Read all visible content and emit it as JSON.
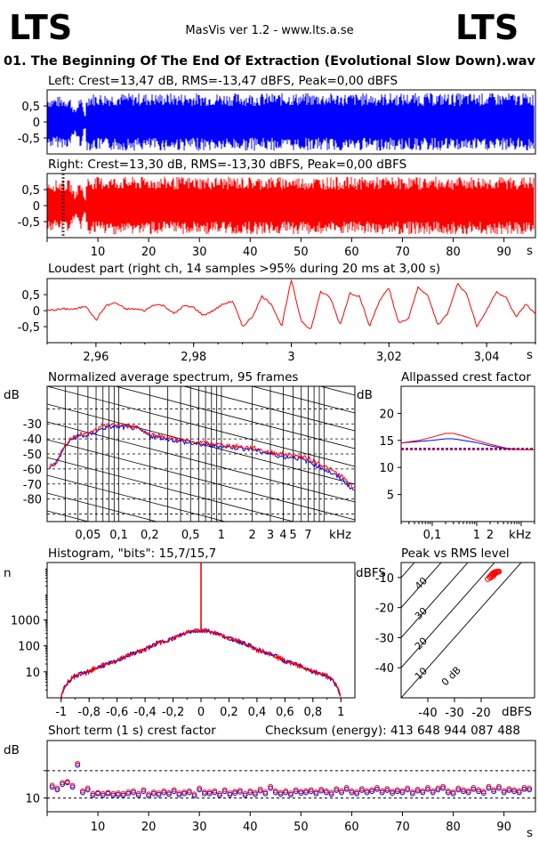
{
  "header": {
    "logo_left": "LTS",
    "logo_right": "LTS",
    "app_title": "MasVis ver 1.2 - www.lts.a.se",
    "file_title": "01. The Beginning Of The End Of Extraction (Evolutional Slow Down).wav"
  },
  "colors": {
    "left_channel": "#0000ff",
    "right_channel": "#ff0000",
    "frame": "#000000",
    "background": "#ffffff"
  },
  "chart_data": [
    {
      "id": "waveform-left",
      "type": "area",
      "title": "Left: Crest=13,47 dB, RMS=-13,47 dBFS, Peak=0,00 dBFS",
      "series": [
        {
          "name": "Left",
          "color": "#0000ff"
        }
      ],
      "x": [
        0,
        4.5,
        5.5,
        6.5,
        7.5,
        7.8,
        20,
        40,
        60,
        80,
        96.2
      ],
      "y_envelope": [
        0.8,
        0.8,
        0.35,
        0.85,
        0.2,
        0.9,
        0.9,
        0.9,
        0.9,
        0.9,
        0.9
      ],
      "ylim": [
        -1,
        1
      ],
      "yticks": [
        "0,5",
        "0",
        "-0,5"
      ],
      "xlim": [
        0,
        96.2
      ]
    },
    {
      "id": "waveform-right",
      "type": "area",
      "title": "Right: Crest=13,30 dB, RMS=-13,30 dBFS, Peak=0,00 dBFS",
      "series": [
        {
          "name": "Right",
          "color": "#ff0000"
        }
      ],
      "x": [
        0,
        4.5,
        5.5,
        6.5,
        7.5,
        7.8,
        20,
        40,
        60,
        80,
        96.2
      ],
      "y_envelope": [
        0.8,
        0.8,
        0.35,
        0.85,
        0.2,
        0.9,
        0.9,
        0.9,
        0.9,
        0.9,
        0.9
      ],
      "marker_x": [
        3.0,
        3.3
      ],
      "ylim": [
        -1,
        1
      ],
      "yticks": [
        "0,5",
        "0",
        "-0,5"
      ],
      "xlim": [
        0,
        96.2
      ],
      "xticks": [
        "10",
        "20",
        "30",
        "40",
        "50",
        "60",
        "70",
        "80",
        "90"
      ],
      "xunit": "s"
    },
    {
      "id": "loudest-part",
      "type": "line",
      "title": "Loudest part (right ch, 14 samples >95% during 20 ms at 3,00 s)",
      "series": [
        {
          "name": "Right",
          "color": "#ff0000"
        }
      ],
      "x": [
        2.95,
        2.953,
        2.956,
        2.958,
        2.96,
        2.962,
        2.964,
        2.966,
        2.968,
        2.97,
        2.972,
        2.974,
        2.976,
        2.978,
        2.98,
        2.982,
        2.984,
        2.986,
        2.988,
        2.99,
        2.992,
        2.994,
        2.996,
        2.998,
        3.0,
        3.002,
        3.004,
        3.006,
        3.008,
        3.01,
        3.012,
        3.014,
        3.016,
        3.018,
        3.02,
        3.022,
        3.024,
        3.026,
        3.028,
        3.03,
        3.032,
        3.034,
        3.036,
        3.038,
        3.04,
        3.042,
        3.044,
        3.046,
        3.048,
        3.05
      ],
      "values": [
        0.0,
        0.05,
        0.05,
        0.15,
        -0.3,
        0.15,
        0.25,
        0.05,
        0.05,
        0.0,
        0.2,
        0.15,
        -0.1,
        0.15,
        0.1,
        -0.15,
        0.0,
        0.2,
        0.3,
        -0.5,
        -0.2,
        0.45,
        0.2,
        -0.5,
        0.95,
        -0.3,
        -0.6,
        0.6,
        0.4,
        -0.45,
        0.55,
        0.45,
        -0.5,
        0.3,
        0.7,
        -0.4,
        -0.25,
        0.75,
        0.45,
        -0.45,
        -0.1,
        0.85,
        0.5,
        -0.5,
        0.0,
        0.6,
        0.4,
        -0.2,
        0.2,
        -0.1
      ],
      "ylim": [
        -1,
        1
      ],
      "yticks": [
        "0,5",
        "0",
        "-0,5"
      ],
      "xlim": [
        2.95,
        3.05
      ],
      "xticks": [
        "2,96",
        "2,98",
        "3",
        "3,02",
        "3,04"
      ],
      "xunit": "s"
    },
    {
      "id": "spectrum",
      "type": "line",
      "title": "Normalized average spectrum, 95 frames",
      "ylabel": "dB",
      "series": [
        {
          "name": "Left",
          "color": "#0000ff"
        },
        {
          "name": "Right",
          "color": "#ff0000"
        }
      ],
      "x": [
        0.02,
        0.025,
        0.03,
        0.035,
        0.04,
        0.05,
        0.06,
        0.07,
        0.08,
        0.1,
        0.15,
        0.2,
        0.3,
        0.5,
        0.7,
        1,
        2,
        3,
        4,
        5,
        7,
        10,
        15,
        20
      ],
      "values_left": [
        -60,
        -55,
        -45,
        -40,
        -38,
        -38,
        -35,
        -33,
        -32,
        -32,
        -33,
        -38,
        -40,
        -43,
        -44,
        -45,
        -47,
        -50,
        -52,
        -52,
        -55,
        -60,
        -67,
        -75
      ],
      "values_right": [
        -60,
        -55,
        -44,
        -39,
        -37,
        -37,
        -34,
        -32,
        -31,
        -31,
        -32,
        -37,
        -39,
        -42,
        -43,
        -44,
        -46,
        -49,
        -50,
        -51,
        -53,
        -58,
        -65,
        -74
      ],
      "ylim": [
        -95,
        -5
      ],
      "yticks": [
        "-30",
        "-40",
        "-50",
        "-60",
        "-70",
        "-80"
      ],
      "xscale": "log",
      "xlim": [
        0.02,
        20
      ],
      "xticks": [
        "0,05",
        "0,1",
        "0,2",
        "0,5",
        "1",
        "2",
        "3",
        "4",
        "5",
        "7"
      ],
      "xunit": "kHz"
    },
    {
      "id": "allpassed-crest",
      "type": "line",
      "title": "Allpassed crest factor",
      "ylabel": "dB",
      "series": [
        {
          "name": "Left",
          "color": "#0000ff"
        },
        {
          "name": "Right",
          "color": "#ff0000"
        }
      ],
      "x": [
        0.02,
        0.05,
        0.1,
        0.2,
        0.3,
        0.5,
        1,
        2,
        5,
        10,
        20
      ],
      "values_left": [
        14.5,
        14.8,
        15.0,
        15.3,
        15.3,
        15.0,
        14.6,
        14.0,
        13.4,
        13.3,
        13.3
      ],
      "values_right": [
        14.5,
        15.0,
        15.6,
        16.3,
        16.3,
        15.8,
        15.0,
        14.3,
        13.5,
        13.3,
        13.3
      ],
      "reference_left": 13.5,
      "reference_right": 13.3,
      "ylim": [
        0,
        25
      ],
      "yticks": [
        "20",
        "15",
        "10",
        "5"
      ],
      "xscale": "log",
      "xlim": [
        0.02,
        20
      ],
      "xticks": [
        "0,1",
        "1",
        "2"
      ],
      "xunit": "kHz"
    },
    {
      "id": "histogram",
      "type": "line",
      "title": "Histogram, \"bits\": 15,7/15,7",
      "ylabel": "n",
      "series": [
        {
          "name": "Left",
          "color": "#0000ff"
        },
        {
          "name": "Right",
          "color": "#ff0000"
        }
      ],
      "x": [
        -1.0,
        -0.95,
        -0.9,
        -0.8,
        -0.6,
        -0.4,
        -0.2,
        -0.05,
        0.0,
        0.05,
        0.2,
        0.4,
        0.6,
        0.8,
        0.9,
        0.95,
        1.0
      ],
      "values": [
        1,
        4,
        7,
        10,
        25,
        70,
        190,
        380,
        100000,
        380,
        190,
        70,
        25,
        10,
        7,
        4,
        1
      ],
      "yscale": "log",
      "ylim": [
        1,
        100000
      ],
      "yticks": [
        "1000",
        "100",
        "10"
      ],
      "xlim": [
        -1.1,
        1.1
      ],
      "xticks": [
        "-1",
        "-0,8",
        "-0,6",
        "-0,4",
        "-0,2",
        "0",
        "0,2",
        "0,4",
        "0,6",
        "0,8",
        "1"
      ]
    },
    {
      "id": "peak-vs-rms",
      "type": "scatter",
      "title": "Peak vs RMS level",
      "ylabel": "dBFS",
      "xlabel": "dBFS",
      "series": [
        {
          "name": "Left",
          "color": "#0000ff"
        },
        {
          "name": "Right",
          "color": "#ff0000"
        }
      ],
      "x": [
        -17.5,
        -16.8,
        -16.2,
        -15.8,
        -15.4,
        -15.0,
        -14.6,
        -14.2,
        -13.8,
        -13.4,
        -15.5,
        -14.8,
        -14.0,
        -16.5,
        -15.2
      ],
      "values": [
        -10.5,
        -9.8,
        -9.2,
        -8.8,
        -8.5,
        -8.3,
        -8.2,
        -8.1,
        -8.0,
        -8.0,
        -9.5,
        -8.6,
        -8.2,
        -10.0,
        -9.0
      ],
      "diagonal_labels": [
        "40",
        "30",
        "20",
        "10",
        "0 dB"
      ],
      "xlim": [
        -50,
        0
      ],
      "ylim": [
        -50,
        -5
      ],
      "xticks": [
        "-40",
        "-30",
        "-20"
      ],
      "yticks": [
        "-10",
        "-20",
        "-30",
        "-40"
      ]
    },
    {
      "id": "short-term-crest",
      "type": "scatter",
      "title": "Short term (1 s) crest factor",
      "annotation": "Checksum (energy):  413 648 944 087 488",
      "ylabel": "dB",
      "series": [
        {
          "name": "Left",
          "color": "#0000ff"
        },
        {
          "name": "Right",
          "color": "#ff0000"
        }
      ],
      "x": [
        1,
        2,
        3,
        4,
        5,
        6,
        7,
        8,
        9,
        10,
        11,
        12,
        13,
        14,
        15,
        16,
        17,
        18,
        19,
        20,
        21,
        22,
        23,
        24,
        25,
        26,
        27,
        28,
        29,
        30,
        31,
        32,
        33,
        34,
        35,
        36,
        37,
        38,
        39,
        40,
        41,
        42,
        43,
        44,
        45,
        46,
        47,
        48,
        49,
        50,
        51,
        52,
        53,
        54,
        55,
        56,
        57,
        58,
        59,
        60,
        61,
        62,
        63,
        64,
        65,
        66,
        67,
        68,
        69,
        70,
        71,
        72,
        73,
        74,
        75,
        76,
        77,
        78,
        79,
        80,
        81,
        82,
        83,
        84,
        85,
        86,
        87,
        88,
        89,
        90,
        91,
        92,
        93,
        94,
        95
      ],
      "values_left": [
        12.0,
        11.5,
        12.5,
        12.8,
        12.0,
        16.0,
        11.0,
        11.5,
        10.5,
        10.8,
        10.5,
        10.8,
        10.5,
        10.6,
        10.5,
        10.8,
        11.0,
        10.5,
        11.2,
        10.4,
        10.8,
        10.6,
        11.0,
        10.7,
        11.2,
        10.6,
        10.8,
        11.0,
        10.4,
        11.5,
        10.8,
        10.8,
        11.0,
        10.5,
        11.2,
        10.6,
        10.9,
        11.1,
        10.5,
        11.0,
        10.7,
        11.3,
        10.8,
        11.8,
        11.0,
        10.7,
        11.0,
        10.6,
        11.2,
        10.9,
        11.0,
        11.2,
        10.8,
        11.3,
        11.0,
        10.7,
        11.4,
        11.0,
        11.6,
        11.0,
        10.8,
        11.4,
        11.0,
        11.2,
        11.6,
        11.0,
        11.4,
        10.9,
        11.2,
        11.0,
        11.5,
        10.8,
        11.3,
        11.0,
        11.6,
        11.0,
        11.5,
        11.8,
        11.0,
        10.8,
        11.5,
        11.2,
        11.0,
        11.6,
        11.2,
        10.9,
        11.8,
        11.2,
        11.8,
        11.0,
        11.4,
        11.2,
        11.0,
        11.6,
        11.5
      ],
      "values_right": [
        12.3,
        11.8,
        12.8,
        13.0,
        12.3,
        16.3,
        11.3,
        11.8,
        10.8,
        11.0,
        10.8,
        11.0,
        10.8,
        10.9,
        10.8,
        11.1,
        11.3,
        10.8,
        11.5,
        10.7,
        11.1,
        10.9,
        11.3,
        11.0,
        11.5,
        10.9,
        11.1,
        11.3,
        10.7,
        11.8,
        11.1,
        11.1,
        11.3,
        10.8,
        11.5,
        10.9,
        11.2,
        11.4,
        10.8,
        11.3,
        11.0,
        11.6,
        11.1,
        12.1,
        11.3,
        11.0,
        11.3,
        10.9,
        11.5,
        11.2,
        11.3,
        11.5,
        11.1,
        11.6,
        11.3,
        11.0,
        11.7,
        11.3,
        11.9,
        11.3,
        11.1,
        11.7,
        11.3,
        11.5,
        11.9,
        11.3,
        11.7,
        11.2,
        11.5,
        11.3,
        11.8,
        11.1,
        11.6,
        11.3,
        11.9,
        11.3,
        11.8,
        12.1,
        11.3,
        11.1,
        11.8,
        11.5,
        11.3,
        11.9,
        11.5,
        11.2,
        12.1,
        11.5,
        12.1,
        11.3,
        11.7,
        11.5,
        11.3,
        11.9,
        11.8
      ],
      "reference_lines": [
        10,
        15
      ],
      "ylim": [
        5,
        20
      ],
      "yticks": [
        "10"
      ],
      "xlim": [
        0,
        96.2
      ],
      "xticks": [
        "10",
        "20",
        "30",
        "40",
        "50",
        "60",
        "70",
        "80",
        "90"
      ],
      "xunit": "s"
    }
  ]
}
